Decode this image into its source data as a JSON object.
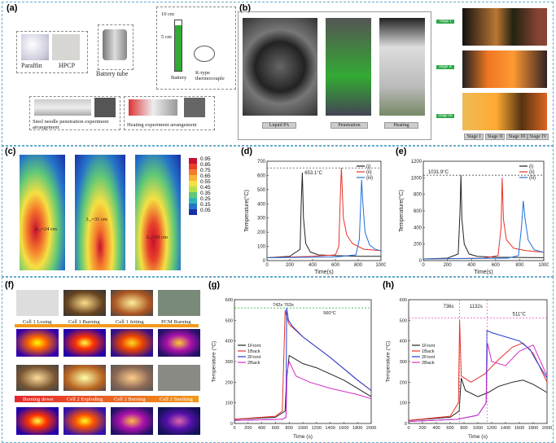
{
  "panels": {
    "a": "(a)",
    "b": "(b)",
    "c": "(c)",
    "d": "(d)",
    "e": "(e)",
    "f": "(f)",
    "g": "(g)",
    "h": "(h)"
  },
  "a": {
    "paraffin": "Paraffin",
    "hpcp": "HPCP",
    "battery_tube": "Battery tube",
    "h10": "10 cm",
    "h5": "5 cm",
    "battery": "Battery",
    "thermocouple": "K-type\nthermocouple",
    "steel": "Steel needle penetration experiment\narrangement",
    "heating": "Heating experiment arrangement"
  },
  "b": {
    "labels": [
      "Liquid PA",
      "Penetration",
      "Heating"
    ],
    "stages": [
      "Stage I",
      "Stage II",
      "Stage III"
    ],
    "right_stages": [
      "Stage I",
      "Stage II",
      "Stage III",
      "Stage IV"
    ]
  },
  "c": {
    "legend": [
      "0.95",
      "0.85",
      "0.75",
      "0.65",
      "0.55",
      "0.45",
      "0.35",
      "0.25",
      "0.15",
      "0.05"
    ],
    "legend_colors": [
      "#c8102e",
      "#e8402a",
      "#f47a2c",
      "#f8b13a",
      "#f5e042",
      "#b8e04b",
      "#5fc877",
      "#2fb3b6",
      "#2574c8",
      "#1a2ea8"
    ],
    "l1": "L₁=24 cm",
    "l2": "L₂=31 cm",
    "l3": "L₃=19 cm"
  },
  "f": {
    "row1": [
      "Cell 1 Losing",
      "Cell 1 Burning",
      "Cell 1 Jetting",
      "PCM Burning"
    ],
    "row2": [
      "Burning down",
      "Cell 2 Exploding",
      "Cell 2 Burning",
      "Cell 2 Smoking"
    ]
  },
  "chart_data": [
    {
      "id": "d",
      "type": "line",
      "xlabel": "Time(s)",
      "ylabel": "Temperature(°C)",
      "xlim": [
        0,
        1000
      ],
      "ylim": [
        0,
        700
      ],
      "xticks": [
        0,
        200,
        400,
        600,
        800,
        1000
      ],
      "yticks": [
        0,
        100,
        200,
        300,
        400,
        500,
        600,
        700
      ],
      "annotation": "653.1°C",
      "ref_y": 653.1,
      "series": [
        {
          "name": "(i)",
          "color": "#222222",
          "x": [
            0,
            200,
            290,
            300,
            310,
            320,
            340,
            380,
            450,
            600,
            800,
            1000
          ],
          "y": [
            20,
            30,
            80,
            400,
            620,
            300,
            120,
            60,
            40,
            35,
            30,
            30
          ]
        },
        {
          "name": "(ii)",
          "color": "#e8312a",
          "x": [
            0,
            400,
            600,
            630,
            645,
            653,
            670,
            700,
            750,
            850,
            1000
          ],
          "y": [
            20,
            30,
            40,
            100,
            500,
            653,
            300,
            180,
            120,
            80,
            70
          ]
        },
        {
          "name": "(iii)",
          "color": "#1e6fd9",
          "x": [
            0,
            600,
            780,
            810,
            830,
            840,
            860,
            900,
            950,
            1000
          ],
          "y": [
            20,
            25,
            40,
            150,
            570,
            420,
            200,
            110,
            80,
            70
          ]
        }
      ]
    },
    {
      "id": "e",
      "type": "line",
      "xlabel": "Time(s)",
      "ylabel": "Temperature(°C)",
      "xlim": [
        0,
        1000
      ],
      "ylim": [
        0,
        1200
      ],
      "xticks": [
        0,
        200,
        400,
        600,
        800,
        1000
      ],
      "yticks": [
        0,
        200,
        400,
        600,
        800,
        1000,
        1200
      ],
      "annotation": "1031.9°C",
      "ref_y": 1031.9,
      "series": [
        {
          "name": "(i)",
          "color": "#222222",
          "x": [
            0,
            200,
            290,
            305,
            312,
            320,
            340,
            380,
            450,
            600,
            1000
          ],
          "y": [
            20,
            30,
            80,
            600,
            1032,
            500,
            200,
            80,
            50,
            40,
            35
          ]
        },
        {
          "name": "(ii)",
          "color": "#e8312a",
          "x": [
            0,
            500,
            620,
            645,
            655,
            665,
            690,
            750,
            850,
            1000
          ],
          "y": [
            20,
            30,
            60,
            400,
            1000,
            500,
            250,
            150,
            120,
            100
          ]
        },
        {
          "name": "(iii)",
          "color": "#1e6fd9",
          "x": [
            0,
            700,
            790,
            815,
            830,
            845,
            870,
            920,
            1000
          ],
          "y": [
            20,
            30,
            60,
            400,
            720,
            500,
            250,
            130,
            100
          ]
        }
      ]
    },
    {
      "id": "g",
      "type": "line",
      "xlabel": "Time (s)",
      "ylabel": "Temperature (°C)",
      "xlim": [
        0,
        2000
      ],
      "ylim": [
        0,
        600
      ],
      "xticks": [
        0,
        200,
        400,
        600,
        800,
        1000,
        1200,
        1400,
        1600,
        1800,
        2000
      ],
      "yticks": [
        0,
        100,
        200,
        300,
        400,
        500,
        600
      ],
      "annotation": "742s 763s",
      "annotation2": "560°C",
      "ref_y": 560,
      "series": [
        {
          "name": "1Front",
          "color": "#222222",
          "x": [
            0,
            600,
            740,
            760,
            800,
            1000,
            1200,
            1400,
            1600,
            1800,
            2000
          ],
          "y": [
            20,
            30,
            60,
            200,
            330,
            290,
            270,
            240,
            210,
            170,
            130
          ]
        },
        {
          "name": "1Back",
          "color": "#e8312a",
          "x": [
            0,
            600,
            700,
            742,
            760,
            800,
            1000,
            1400,
            1800,
            2000
          ],
          "y": [
            20,
            35,
            60,
            550,
            520,
            480,
            420,
            320,
            210,
            160
          ]
        },
        {
          "name": "2Front",
          "color": "#1e3fd9",
          "x": [
            0,
            700,
            755,
            763,
            790,
            850,
            1000,
            1400,
            1800,
            2000
          ],
          "y": [
            15,
            20,
            30,
            560,
            500,
            470,
            420,
            320,
            210,
            160
          ]
        },
        {
          "name": "2Back",
          "color": "#d42fc8",
          "x": [
            0,
            700,
            755,
            770,
            800,
            900,
            1100,
            1400,
            1800,
            2000
          ],
          "y": [
            15,
            20,
            30,
            250,
            300,
            230,
            200,
            170,
            140,
            120
          ]
        }
      ]
    },
    {
      "id": "h",
      "type": "line",
      "xlabel": "Time (s)",
      "ylabel": "Temperature (°C)",
      "xlim": [
        0,
        2000
      ],
      "ylim": [
        0,
        600
      ],
      "xticks": [
        0,
        200,
        400,
        600,
        800,
        1000,
        1200,
        1400,
        1600,
        1800,
        2000
      ],
      "yticks": [
        0,
        100,
        200,
        300,
        400,
        500,
        600
      ],
      "annotation": "736s",
      "annotation2": "1132s",
      "annotation3": "511°C",
      "ref_y": 511,
      "series": [
        {
          "name": "1Front",
          "color": "#222222",
          "x": [
            0,
            600,
            730,
            760,
            820,
            1000,
            1150,
            1300,
            1500,
            1650,
            1800,
            2000
          ],
          "y": [
            15,
            30,
            60,
            220,
            160,
            130,
            150,
            180,
            200,
            210,
            190,
            150
          ]
        },
        {
          "name": "1Back",
          "color": "#e8312a",
          "x": [
            0,
            600,
            720,
            736,
            760,
            900,
            1100,
            1300,
            1500,
            1650,
            1800,
            2000
          ],
          "y": [
            15,
            35,
            100,
            500,
            230,
            200,
            240,
            310,
            370,
            390,
            340,
            200
          ]
        },
        {
          "name": "2Front",
          "color": "#1e3fd9",
          "x": [
            0,
            700,
            1000,
            1120,
            1132,
            1200,
            1400,
            1600,
            1750,
            1850,
            2000
          ],
          "y": [
            10,
            20,
            40,
            100,
            450,
            440,
            420,
            400,
            360,
            300,
            220
          ]
        },
        {
          "name": "2Back",
          "color": "#d42fc8",
          "x": [
            0,
            700,
            1000,
            1120,
            1140,
            1200,
            1400,
            1600,
            1800,
            2000
          ],
          "y": [
            10,
            20,
            40,
            100,
            390,
            300,
            280,
            350,
            380,
            230
          ]
        }
      ]
    }
  ]
}
